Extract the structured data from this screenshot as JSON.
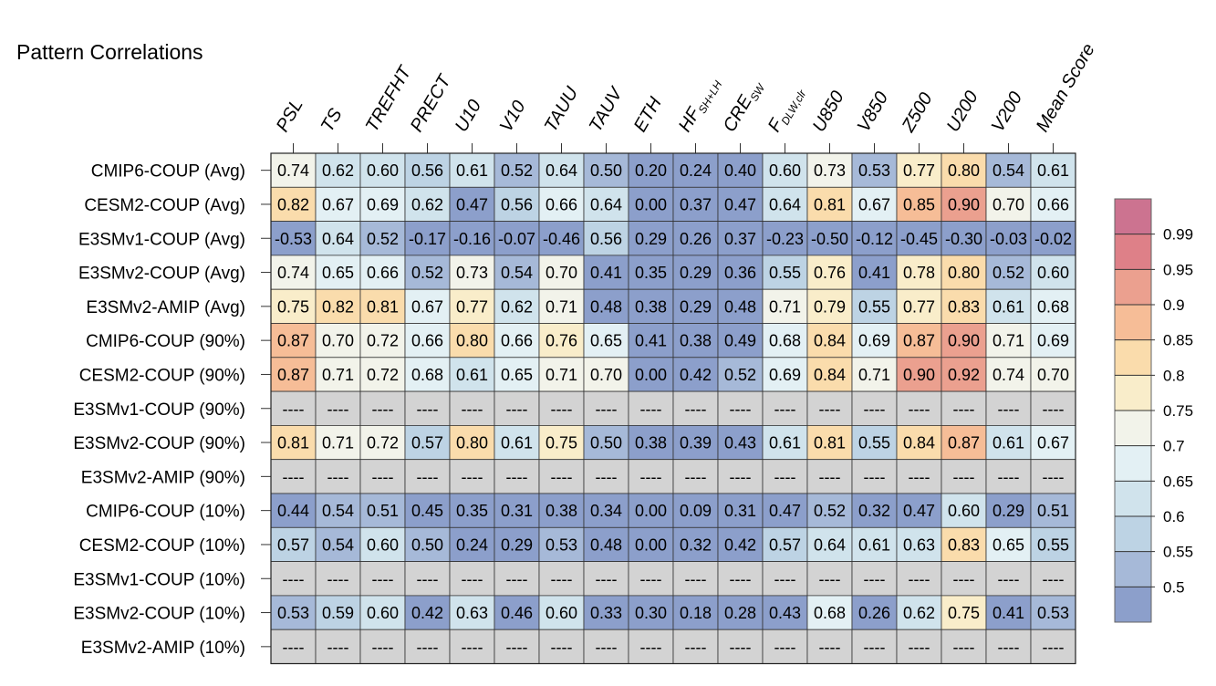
{
  "title": "Pattern Correlations",
  "chart_data": {
    "type": "heatmap",
    "title": "Pattern Correlations",
    "columns": [
      {
        "base": "PSL",
        "sub": ""
      },
      {
        "base": "TS",
        "sub": ""
      },
      {
        "base": "TREFHT",
        "sub": ""
      },
      {
        "base": "PRECT",
        "sub": ""
      },
      {
        "base": "U10",
        "sub": ""
      },
      {
        "base": "V10",
        "sub": ""
      },
      {
        "base": "TAUU",
        "sub": ""
      },
      {
        "base": "TAUV",
        "sub": ""
      },
      {
        "base": "ETH",
        "sub": ""
      },
      {
        "base": "HF",
        "sub": "SH+LH"
      },
      {
        "base": "CRE",
        "sub": "SW"
      },
      {
        "base": "F",
        "sub": "DLW,clr"
      },
      {
        "base": "U850",
        "sub": ""
      },
      {
        "base": "V850",
        "sub": ""
      },
      {
        "base": "Z500",
        "sub": ""
      },
      {
        "base": "U200",
        "sub": ""
      },
      {
        "base": "V200",
        "sub": ""
      },
      {
        "base": "Mean Score",
        "sub": ""
      }
    ],
    "rows": [
      "CMIP6-COUP (Avg)",
      "CESM2-COUP (Avg)",
      "E3SMv1-COUP (Avg)",
      "E3SMv2-COUP (Avg)",
      "E3SMv2-AMIP (Avg)",
      "CMIP6-COUP (90%)",
      "CESM2-COUP (90%)",
      "E3SMv1-COUP (90%)",
      "E3SMv2-COUP (90%)",
      "E3SMv2-AMIP (90%)",
      "CMIP6-COUP (10%)",
      "CESM2-COUP (10%)",
      "E3SMv1-COUP (10%)",
      "E3SMv2-COUP (10%)",
      "E3SMv2-AMIP (10%)"
    ],
    "values": [
      [
        "0.74",
        "0.62",
        "0.60",
        "0.56",
        "0.61",
        "0.52",
        "0.64",
        "0.50",
        "0.20",
        "0.24",
        "0.40",
        "0.60",
        "0.73",
        "0.53",
        "0.77",
        "0.80",
        "0.54",
        "0.61"
      ],
      [
        "0.82",
        "0.67",
        "0.69",
        "0.62",
        "0.47",
        "0.56",
        "0.66",
        "0.64",
        "0.00",
        "0.37",
        "0.47",
        "0.64",
        "0.81",
        "0.67",
        "0.85",
        "0.90",
        "0.70",
        "0.66"
      ],
      [
        "-0.53",
        "0.64",
        "0.52",
        "-0.17",
        "-0.16",
        "-0.07",
        "-0.46",
        "0.56",
        "0.29",
        "0.26",
        "0.37",
        "-0.23",
        "-0.50",
        "-0.12",
        "-0.45",
        "-0.30",
        "-0.03",
        "-0.02"
      ],
      [
        "0.74",
        "0.65",
        "0.66",
        "0.52",
        "0.73",
        "0.54",
        "0.70",
        "0.41",
        "0.35",
        "0.29",
        "0.36",
        "0.55",
        "0.76",
        "0.41",
        "0.78",
        "0.80",
        "0.52",
        "0.60"
      ],
      [
        "0.75",
        "0.82",
        "0.81",
        "0.67",
        "0.77",
        "0.62",
        "0.71",
        "0.48",
        "0.38",
        "0.29",
        "0.48",
        "0.71",
        "0.79",
        "0.55",
        "0.77",
        "0.83",
        "0.61",
        "0.68"
      ],
      [
        "0.87",
        "0.70",
        "0.72",
        "0.66",
        "0.80",
        "0.66",
        "0.76",
        "0.65",
        "0.41",
        "0.38",
        "0.49",
        "0.68",
        "0.84",
        "0.69",
        "0.87",
        "0.90",
        "0.71",
        "0.69"
      ],
      [
        "0.87",
        "0.71",
        "0.72",
        "0.68",
        "0.61",
        "0.65",
        "0.71",
        "0.70",
        "0.00",
        "0.42",
        "0.52",
        "0.69",
        "0.84",
        "0.71",
        "0.90",
        "0.92",
        "0.74",
        "0.70"
      ],
      [
        "----",
        "----",
        "----",
        "----",
        "----",
        "----",
        "----",
        "----",
        "----",
        "----",
        "----",
        "----",
        "----",
        "----",
        "----",
        "----",
        "----",
        "----"
      ],
      [
        "0.81",
        "0.71",
        "0.72",
        "0.57",
        "0.80",
        "0.61",
        "0.75",
        "0.50",
        "0.38",
        "0.39",
        "0.43",
        "0.61",
        "0.81",
        "0.55",
        "0.84",
        "0.87",
        "0.61",
        "0.67"
      ],
      [
        "----",
        "----",
        "----",
        "----",
        "----",
        "----",
        "----",
        "----",
        "----",
        "----",
        "----",
        "----",
        "----",
        "----",
        "----",
        "----",
        "----",
        "----"
      ],
      [
        "0.44",
        "0.54",
        "0.51",
        "0.45",
        "0.35",
        "0.31",
        "0.38",
        "0.34",
        "0.00",
        "0.09",
        "0.31",
        "0.47",
        "0.52",
        "0.32",
        "0.47",
        "0.60",
        "0.29",
        "0.51"
      ],
      [
        "0.57",
        "0.54",
        "0.60",
        "0.50",
        "0.24",
        "0.29",
        "0.53",
        "0.48",
        "0.00",
        "0.32",
        "0.42",
        "0.57",
        "0.64",
        "0.61",
        "0.63",
        "0.83",
        "0.65",
        "0.55"
      ],
      [
        "----",
        "----",
        "----",
        "----",
        "----",
        "----",
        "----",
        "----",
        "----",
        "----",
        "----",
        "----",
        "----",
        "----",
        "----",
        "----",
        "----",
        "----"
      ],
      [
        "0.53",
        "0.59",
        "0.60",
        "0.42",
        "0.63",
        "0.46",
        "0.60",
        "0.33",
        "0.30",
        "0.18",
        "0.28",
        "0.43",
        "0.68",
        "0.26",
        "0.62",
        "0.75",
        "0.41",
        "0.53"
      ],
      [
        "----",
        "----",
        "----",
        "----",
        "----",
        "----",
        "----",
        "----",
        "----",
        "----",
        "----",
        "----",
        "----",
        "----",
        "----",
        "----",
        "----",
        "----"
      ]
    ],
    "missing_color": "#d3d3d3",
    "colorbar": {
      "labels": [
        "0.99",
        "0.95",
        "0.9",
        "0.85",
        "0.8",
        "0.75",
        "0.7",
        "0.65",
        "0.6",
        "0.55",
        "0.5"
      ],
      "bounds": [
        0.5,
        0.55,
        0.6,
        0.65,
        0.7,
        0.75,
        0.8,
        0.85,
        0.9,
        0.95,
        0.99
      ],
      "colors": [
        "#8c9fcb",
        "#a6b9d8",
        "#bdd3e4",
        "#d0e3ec",
        "#e3f0f4",
        "#f2f3ea",
        "#f9edca",
        "#fadcac",
        "#f6bd97",
        "#eba08f",
        "#de8088",
        "#cc7390"
      ]
    }
  }
}
